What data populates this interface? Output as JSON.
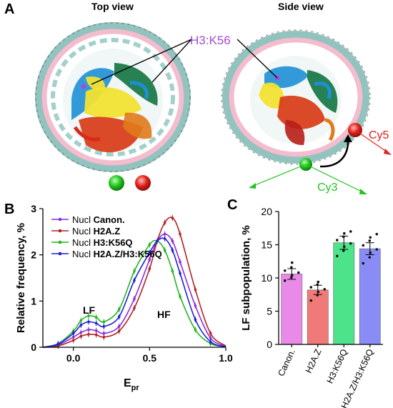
{
  "panels": {
    "a": {
      "letter": "A",
      "top_view_title": "Top view",
      "side_view_title": "Side view",
      "site_label": "H3:K56",
      "donor_label": "Cy3",
      "acceptor_label": "Cy5",
      "colors": {
        "site": "#a64bd6",
        "donor": "#22c41e",
        "acceptor": "#e0201b",
        "dna": "#f2b6c9",
        "dna_outline": "#7fb8b3"
      }
    },
    "b": {
      "letter": "B",
      "ylabel": "Relative frequency, %",
      "xlabel_main": "E",
      "xlabel_sub": "pr",
      "annotation_lf": "LF",
      "annotation_hf": "HF",
      "legend_prefix": "Nucl"
    },
    "c": {
      "letter": "C",
      "ylabel": "LF subpopulation, %"
    }
  },
  "chart_data": [
    {
      "type": "line",
      "panel": "B",
      "xlim": [
        -0.2,
        1.0
      ],
      "ylim": [
        0,
        3.0
      ],
      "xticks": [
        "0.0",
        "0.5",
        "1.0"
      ],
      "yticks": [
        "0",
        "1",
        "2",
        "3"
      ],
      "x": [
        -0.2,
        -0.1,
        0.0,
        0.05,
        0.1,
        0.15,
        0.2,
        0.3,
        0.4,
        0.5,
        0.55,
        0.6,
        0.65,
        0.7,
        0.8,
        0.9,
        1.0
      ],
      "legend_placement": "top-left",
      "series": [
        {
          "name": "Canon.",
          "color": "#8a2be2",
          "values": [
            0.0,
            0.05,
            0.22,
            0.32,
            0.38,
            0.36,
            0.3,
            0.45,
            1.05,
            1.9,
            2.3,
            2.45,
            2.3,
            1.85,
            0.9,
            0.2,
            0.02
          ]
        },
        {
          "name": "H2A.Z",
          "color": "#b22222",
          "values": [
            0.0,
            0.03,
            0.15,
            0.24,
            0.28,
            0.27,
            0.22,
            0.35,
            0.85,
            1.7,
            2.3,
            2.7,
            2.8,
            2.45,
            1.25,
            0.3,
            0.03
          ]
        },
        {
          "name": "H3:K56Q",
          "color": "#22b422",
          "values": [
            0.0,
            0.08,
            0.35,
            0.58,
            0.68,
            0.65,
            0.55,
            0.82,
            1.65,
            2.22,
            2.3,
            2.1,
            1.65,
            1.1,
            0.38,
            0.08,
            0.01
          ]
        },
        {
          "name": "H2A.Z/H3:K56Q",
          "color": "#1f1fd6",
          "values": [
            0.0,
            0.07,
            0.3,
            0.48,
            0.55,
            0.52,
            0.45,
            0.66,
            1.45,
            2.05,
            2.3,
            2.35,
            2.1,
            1.6,
            0.6,
            0.12,
            0.01
          ]
        }
      ]
    },
    {
      "type": "bar",
      "panel": "C",
      "categories": [
        "Canon.",
        "H2A.Z",
        "H3:K56Q",
        "H2A.Z/H3:K56Q"
      ],
      "values": [
        10.6,
        8.2,
        15.3,
        14.4
      ],
      "errors": [
        0.8,
        0.7,
        1.0,
        0.9
      ],
      "colors": [
        "#e98ae8",
        "#f07a78",
        "#4de38a",
        "#8a8cf5"
      ],
      "points": [
        [
          9.6,
          10.1,
          10.4,
          10.8,
          11.1,
          11.6,
          12.3
        ],
        [
          6.6,
          7.4,
          7.9,
          8.3,
          8.6,
          9.0,
          9.4
        ],
        [
          13.3,
          14.1,
          14.7,
          15.2,
          15.7,
          16.2,
          16.7,
          17.0
        ],
        [
          12.2,
          13.1,
          13.8,
          14.3,
          14.9,
          15.6,
          16.1,
          16.6
        ]
      ],
      "ylim": [
        0,
        20
      ],
      "yticks": [
        "0",
        "5",
        "10",
        "15",
        "20"
      ]
    }
  ]
}
